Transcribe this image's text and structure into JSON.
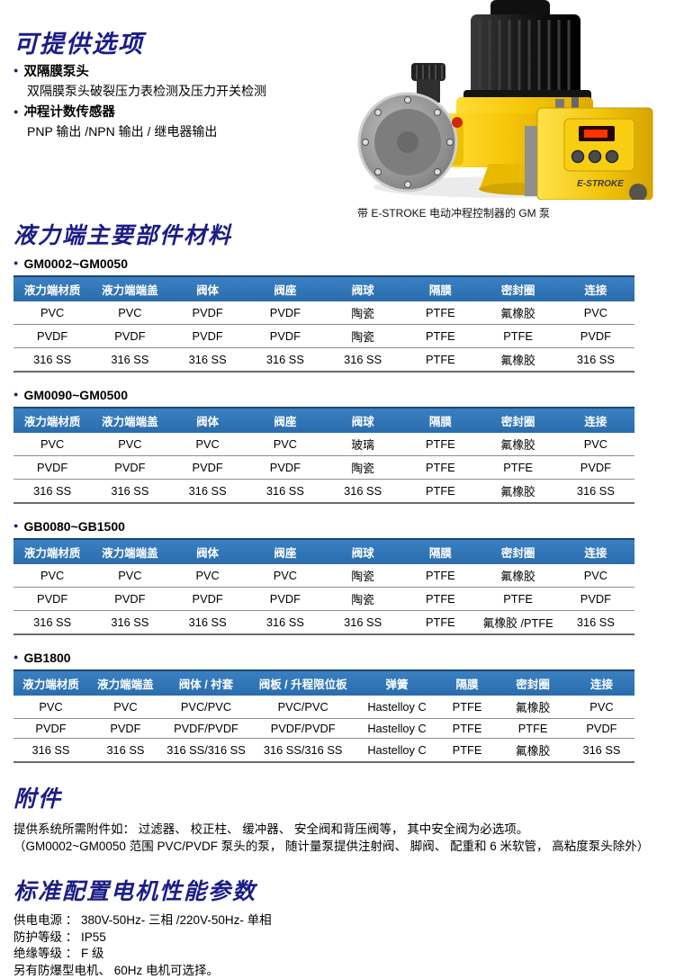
{
  "ui": {
    "bullet": "●"
  },
  "colors": {
    "section_title": "#1b1d86",
    "table_header_bg": "#2f74b4",
    "table_header_text": "#ffffff",
    "pump_yellow": "#f2c400"
  },
  "options_section": {
    "title": "可提供选项",
    "items": [
      {
        "label": "双隔膜泵头",
        "detail": "双隔膜泵头破裂压力表检测及压力开关检测"
      },
      {
        "label": "冲程计数传感器",
        "detail": "PNP 输出 /NPN 输出 / 继电器输出"
      }
    ]
  },
  "pump_figure": {
    "caption": "带 E-STROKE 电动冲程控制器的 GM 泵",
    "brand": "E-STROKE"
  },
  "materials_section": {
    "title": "液力端主要部件材料",
    "tables": [
      {
        "title": "GM0002~GM0050",
        "headers": [
          "液力端材质",
          "液力端端盖",
          "阀体",
          "阀座",
          "阀球",
          "隔膜",
          "密封圈",
          "连接"
        ],
        "rows": [
          [
            "PVC",
            "PVC",
            "PVDF",
            "PVDF",
            "陶瓷",
            "PTFE",
            "氟橡胶",
            "PVC"
          ],
          [
            "PVDF",
            "PVDF",
            "PVDF",
            "PVDF",
            "陶瓷",
            "PTFE",
            "PTFE",
            "PVDF"
          ],
          [
            "316 SS",
            "316 SS",
            "316 SS",
            "316 SS",
            "316 SS",
            "PTFE",
            "氟橡胶",
            "316 SS"
          ]
        ]
      },
      {
        "title": "GM0090~GM0500",
        "headers": [
          "液力端材质",
          "液力端端盖",
          "阀体",
          "阀座",
          "阀球",
          "隔膜",
          "密封圈",
          "连接"
        ],
        "rows": [
          [
            "PVC",
            "PVC",
            "PVC",
            "PVC",
            "玻璃",
            "PTFE",
            "氟橡胶",
            "PVC"
          ],
          [
            "PVDF",
            "PVDF",
            "PVDF",
            "PVDF",
            "陶瓷",
            "PTFE",
            "PTFE",
            "PVDF"
          ],
          [
            "316 SS",
            "316 SS",
            "316 SS",
            "316 SS",
            "316 SS",
            "PTFE",
            "氟橡胶",
            "316 SS"
          ]
        ]
      },
      {
        "title": "GB0080~GB1500",
        "headers": [
          "液力端材质",
          "液力端端盖",
          "阀体",
          "阀座",
          "阀球",
          "隔膜",
          "密封圈",
          "连接"
        ],
        "rows": [
          [
            "PVC",
            "PVC",
            "PVC",
            "PVC",
            "陶瓷",
            "PTFE",
            "氟橡胶",
            "PVC"
          ],
          [
            "PVDF",
            "PVDF",
            "PVDF",
            "PVDF",
            "陶瓷",
            "PTFE",
            "PTFE",
            "PVDF"
          ],
          [
            "316 SS",
            "316 SS",
            "316 SS",
            "316 SS",
            "316 SS",
            "PTFE",
            "氟橡胶 /PTFE",
            "316 SS"
          ]
        ]
      },
      {
        "title": "GB1800",
        "headers": [
          "液力端材质",
          "液力端端盖",
          "阀体 / 衬套",
          "阀板 / 升程限位板",
          "弹簧",
          "隔膜",
          "密封圈",
          "连接"
        ],
        "rows": [
          [
            "PVC",
            "PVC",
            "PVC/PVC",
            "PVC/PVC",
            "Hastelloy C",
            "PTFE",
            "氟橡胶",
            "PVC"
          ],
          [
            "PVDF",
            "PVDF",
            "PVDF/PVDF",
            "PVDF/PVDF",
            "Hastelloy C",
            "PTFE",
            "PTFE",
            "PVDF"
          ],
          [
            "316 SS",
            "316 SS",
            "316 SS/316 SS",
            "316 SS/316 SS",
            "Hastelloy C",
            "PTFE",
            "氟橡胶",
            "316 SS"
          ]
        ]
      }
    ]
  },
  "accessories_section": {
    "title": "附件",
    "lines": [
      "提供系统所需附件如： 过滤器、 校正柱、 缓冲器、 安全阀和背压阀等， 其中安全阀为必选项。",
      "（GM0002~GM0050 范围 PVC/PVDF 泵头的泵， 随计量泵提供注射阀、 脚阀、 配重和 6 米软管， 高粘度泵头除外）"
    ]
  },
  "motor_section": {
    "title": "标准配置电机性能参数",
    "lines": [
      "供电电源 ：  380V-50Hz- 三相 /220V-50Hz- 单相",
      "防护等级 ：  IP55",
      "绝缘等级 ：  F 级",
      "另有防爆型电机、 60Hz 电机可选择。"
    ]
  }
}
